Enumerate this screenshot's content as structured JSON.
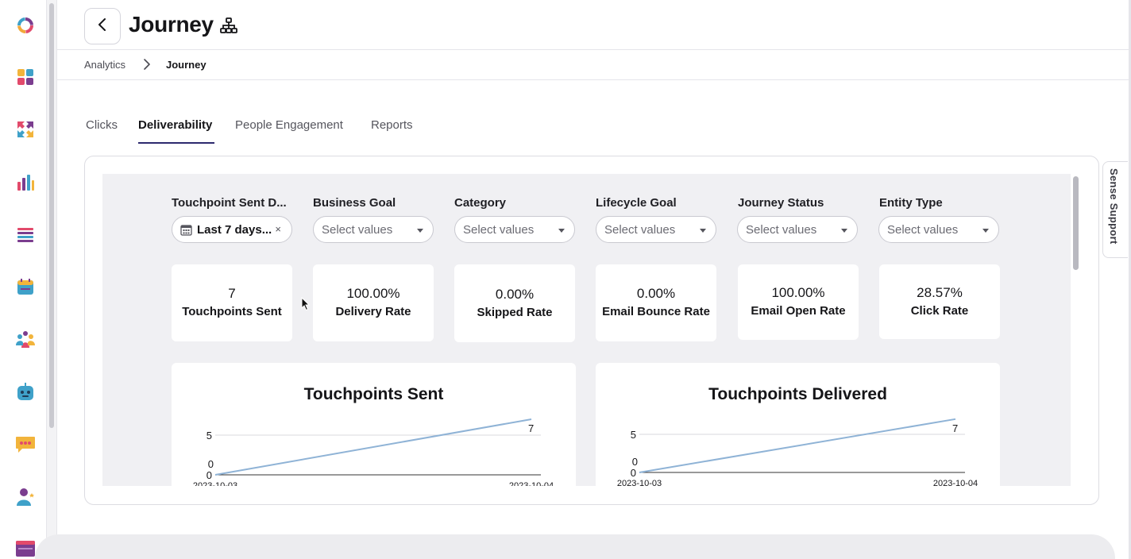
{
  "header": {
    "title": "Journey"
  },
  "breadcrumb": {
    "parent": "Analytics",
    "current": "Journey"
  },
  "tabs": [
    {
      "label": "Clicks"
    },
    {
      "label": "Deliverability"
    },
    {
      "label": "People Engagement"
    },
    {
      "label": "Reports"
    }
  ],
  "active_tab": "Deliverability",
  "side_panel": {
    "label": "Sense Support"
  },
  "filters": [
    {
      "label": "Touchpoint Sent D...",
      "value": "Last 7 days...",
      "clear": "×"
    },
    {
      "label": "Business Goal",
      "placeholder": "Select values"
    },
    {
      "label": "Category",
      "placeholder": "Select values"
    },
    {
      "label": "Lifecycle Goal",
      "placeholder": "Select values"
    },
    {
      "label": "Journey Status",
      "placeholder": "Select values"
    },
    {
      "label": "Entity Type",
      "placeholder": "Select values"
    }
  ],
  "kpis": [
    {
      "value": "7",
      "label": "Touchpoints Sent"
    },
    {
      "value": "100.00%",
      "label": "Delivery Rate"
    },
    {
      "value": "0.00%",
      "label": "Skipped Rate"
    },
    {
      "value": "0.00%",
      "label": "Email Bounce Rate"
    },
    {
      "value": "100.00%",
      "label": "Email Open Rate"
    },
    {
      "value": "28.57%",
      "label": "Click Rate"
    }
  ],
  "chart_data": [
    {
      "type": "line",
      "title": "Touchpoints Sent",
      "x": [
        "2023-10-03",
        "2023-10-04"
      ],
      "values": [
        0,
        7
      ],
      "data_labels": [
        "0",
        "7"
      ],
      "y_ticks": [
        0,
        5
      ],
      "line_color": "#8fb3d6"
    },
    {
      "type": "line",
      "title": "Touchpoints Delivered",
      "x": [
        "2023-10-03",
        "2023-10-04"
      ],
      "values": [
        0,
        7
      ],
      "data_labels": [
        "0",
        "7"
      ],
      "y_ticks": [
        0,
        5
      ],
      "line_color": "#8fb3d6"
    }
  ],
  "icons": {
    "rail": [
      "logo-ring-icon",
      "apps-grid-icon",
      "arrows-exchange-icon",
      "bar-chart-icon",
      "list-icon",
      "calendar-icon",
      "people-icon",
      "bot-icon",
      "chat-icon",
      "user-star-icon",
      "browser-window-icon"
    ],
    "header": [
      "back-chevron-icon",
      "hierarchy-icon"
    ]
  }
}
